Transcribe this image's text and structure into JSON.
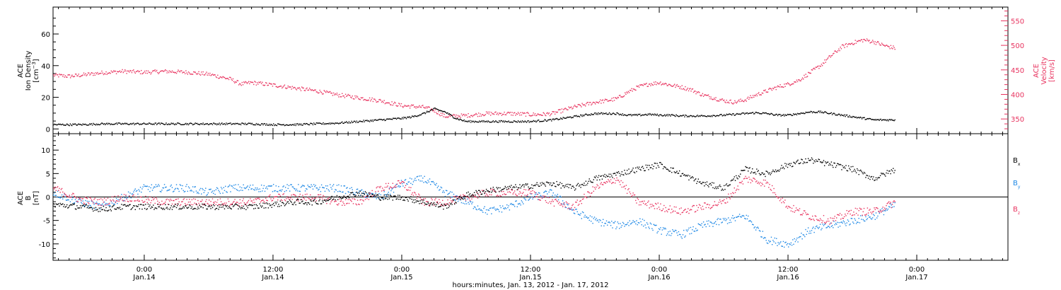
{
  "figure": {
    "xlabel": "hours:minutes, Jan. 13, 2012 - Jan. 17, 2012",
    "time_start_hours": -8.5,
    "time_end_hours": 80.5,
    "tick_step_hours": 12,
    "minor_step_hours": 1,
    "time_ticks": [
      {
        "h": 0,
        "label": "0:00",
        "date": "Jan.14"
      },
      {
        "h": 12,
        "label": "12:00",
        "date": "Jan.14"
      },
      {
        "h": 24,
        "label": "0:00",
        "date": "Jan.15"
      },
      {
        "h": 36,
        "label": "12:00",
        "date": "Jan.15"
      },
      {
        "h": 48,
        "label": "0:00",
        "date": "Jan.16"
      },
      {
        "h": 60,
        "label": "12:00",
        "date": "Jan.16"
      },
      {
        "h": 72,
        "label": "0:00",
        "date": "Jan.17"
      }
    ],
    "time_tick_note": "time axis in hours relative to 0:00 Jan.14"
  },
  "colors": {
    "black": "#000000",
    "pink": "#e8335f",
    "blue": "#1e88e5",
    "axis": "#000000"
  },
  "chart_data": [
    {
      "type": "scatter",
      "panel": "top",
      "ylabel_left": [
        "ACE",
        "Ion Density",
        "[cm^-3]"
      ],
      "ylabel_right": [
        "ACE",
        "Velocity",
        "[km/s]"
      ],
      "ylim_left": [
        -3,
        77
      ],
      "yticks_left": [
        0,
        20,
        40,
        60
      ],
      "ylim_right": [
        320,
        578
      ],
      "yticks_right": [
        350,
        400,
        450,
        500,
        550
      ],
      "grid": false,
      "series": [
        {
          "name": "Ion Density",
          "axis": "left",
          "color": "black",
          "x": [
            -8.5,
            -6,
            -4,
            -2,
            0,
            2,
            4,
            6,
            8,
            10,
            12,
            14,
            16,
            18,
            20,
            22,
            23,
            24,
            25,
            26,
            27,
            28,
            29,
            30,
            32,
            34,
            36,
            38,
            39,
            40,
            41,
            42,
            43,
            44,
            45,
            46,
            47,
            48,
            49,
            50,
            52,
            54,
            56,
            57,
            58,
            59,
            60,
            61,
            62,
            63,
            64,
            65,
            66,
            67,
            68,
            69,
            70
          ],
          "y": [
            3,
            3,
            3.5,
            3.5,
            3.5,
            3.5,
            3.5,
            3.5,
            3.5,
            3.5,
            3,
            3,
            3.5,
            4,
            5,
            6,
            6.5,
            7,
            8,
            10,
            13,
            11,
            7,
            5,
            5,
            5,
            5,
            6,
            7,
            8,
            9,
            10,
            10,
            10,
            9,
            9,
            9.5,
            9,
            9,
            8.5,
            8.5,
            9,
            10,
            10.5,
            10,
            9,
            9,
            10,
            11,
            11,
            10,
            9,
            8,
            7,
            6,
            6,
            6
          ]
        },
        {
          "name": "Velocity",
          "axis": "right",
          "color": "pink",
          "x": [
            -8.5,
            -7,
            -6,
            -4,
            -2,
            0,
            2,
            4,
            6,
            8,
            9,
            10,
            12,
            14,
            16,
            18,
            20,
            22,
            24,
            26,
            27,
            28,
            30,
            32,
            34,
            36,
            37,
            38,
            40,
            41,
            42,
            43,
            44,
            45,
            46,
            47,
            48,
            49,
            50,
            51,
            52,
            53,
            54,
            55,
            56,
            57,
            58,
            59,
            60,
            61,
            62,
            63,
            64,
            65,
            66,
            67,
            68,
            69,
            70
          ],
          "y": [
            440,
            438,
            440,
            445,
            448,
            446,
            448,
            446,
            442,
            432,
            422,
            425,
            420,
            414,
            408,
            400,
            394,
            388,
            378,
            375,
            368,
            356,
            358,
            362,
            362,
            360,
            360,
            362,
            375,
            380,
            385,
            388,
            392,
            405,
            416,
            422,
            425,
            420,
            416,
            410,
            400,
            394,
            388,
            385,
            390,
            400,
            408,
            416,
            422,
            430,
            445,
            460,
            480,
            498,
            506,
            512,
            508,
            500,
            495
          ]
        }
      ]
    },
    {
      "type": "scatter",
      "panel": "bottom",
      "ylabel_left": [
        "ACE",
        "B",
        "[nT]"
      ],
      "ylim": [
        -13.5,
        13.5
      ],
      "yticks": [
        -10,
        -5,
        0,
        5,
        10
      ],
      "zero_line": true,
      "grid": false,
      "series": [
        {
          "name": "Bx",
          "color": "black",
          "x": [
            -8.5,
            -6,
            -4,
            -2,
            0,
            2,
            4,
            6,
            8,
            10,
            12,
            14,
            16,
            18,
            20,
            22,
            24,
            26,
            28,
            30,
            32,
            34,
            36,
            38,
            40,
            42,
            44,
            46,
            48,
            50,
            52,
            54,
            56,
            58,
            60,
            62,
            64,
            66,
            68,
            70
          ],
          "y": [
            -1.5,
            -2,
            -2.5,
            -2,
            -2,
            -2,
            -2,
            -2,
            -2,
            -2,
            -1.5,
            -1,
            -1,
            0,
            1,
            0,
            0,
            -1,
            -2,
            0.5,
            1.5,
            2,
            2.5,
            3,
            2,
            4,
            5,
            6,
            7,
            5,
            3,
            2,
            6,
            5,
            7,
            8,
            7,
            6,
            4,
            6
          ]
        },
        {
          "name": "By",
          "color": "blue",
          "x": [
            -8.5,
            -6,
            -4,
            -2,
            0,
            2,
            4,
            6,
            8,
            10,
            12,
            14,
            16,
            18,
            20,
            22,
            24,
            26,
            28,
            30,
            32,
            34,
            36,
            38,
            40,
            42,
            44,
            46,
            48,
            50,
            52,
            54,
            56,
            58,
            60,
            62,
            64,
            66,
            68,
            70
          ],
          "y": [
            1,
            -1,
            -2,
            0,
            2,
            2,
            2,
            1,
            2,
            2,
            2,
            2,
            2,
            2,
            1,
            0,
            3,
            4,
            1,
            -1,
            -3,
            -2,
            0,
            1,
            -3,
            -5,
            -6,
            -5,
            -7,
            -8,
            -6,
            -5,
            -4,
            -9,
            -10,
            -7,
            -6,
            -5,
            -4,
            -1.5
          ]
        },
        {
          "name": "Bz",
          "color": "pink",
          "x": [
            -8.5,
            -6,
            -4,
            -2,
            0,
            2,
            4,
            6,
            8,
            10,
            12,
            14,
            16,
            18,
            20,
            22,
            24,
            26,
            28,
            30,
            32,
            34,
            36,
            38,
            40,
            42,
            44,
            46,
            48,
            50,
            52,
            54,
            56,
            58,
            60,
            62,
            64,
            66,
            68,
            70
          ],
          "y": [
            2,
            -0.5,
            -1,
            0,
            -0.5,
            -1,
            -1,
            -1,
            -1,
            -1,
            0,
            0,
            0,
            -1,
            -1,
            2,
            3,
            -1,
            -1,
            0,
            1,
            1,
            1,
            -1,
            -2,
            2,
            4,
            -1,
            -2,
            -3,
            -2,
            -1,
            4,
            3,
            -2,
            -4,
            -5,
            -3,
            -3,
            -1
          ]
        }
      ]
    }
  ],
  "legend": [
    {
      "label": "B",
      "sub": "x",
      "color": "black"
    },
    {
      "label": "B",
      "sub": "y",
      "color": "blue"
    },
    {
      "label": "B",
      "sub": "z",
      "color": "pink"
    }
  ]
}
